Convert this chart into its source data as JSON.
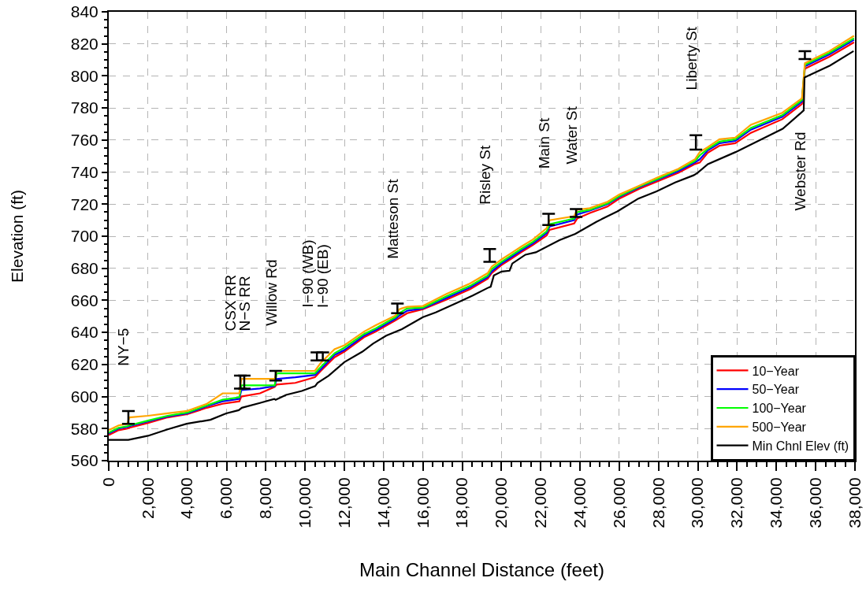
{
  "chart_data": {
    "type": "line",
    "xlabel": "Main Channel Distance (feet)",
    "ylabel": "Elevation (ft)",
    "xlim": [
      0,
      38000
    ],
    "ylim": [
      560,
      840
    ],
    "xticks": [
      0,
      {
        "value": 500,
        "label": null
      },
      {
        "value": 1000,
        "label": null
      },
      {
        "value": 1500,
        "label": null
      },
      {
        "value": 2000,
        "label": "2,000"
      },
      {
        "value": 2500,
        "label": null
      },
      {
        "value": 3000,
        "label": null
      },
      {
        "value": 3500,
        "label": null
      },
      {
        "value": 4000,
        "label": "4,000"
      },
      {
        "value": 4500,
        "label": null
      },
      {
        "value": 5000,
        "label": null
      },
      {
        "value": 5500,
        "label": null
      },
      {
        "value": 6000,
        "label": "6,000"
      },
      {
        "value": 6500,
        "label": null
      },
      {
        "value": 7000,
        "label": null
      },
      {
        "value": 7500,
        "label": null
      },
      {
        "value": 8000,
        "label": "8,000"
      },
      {
        "value": 8500,
        "label": null
      },
      {
        "value": 9000,
        "label": null
      },
      {
        "value": 9500,
        "label": null
      },
      {
        "value": 10000,
        "label": "10,000"
      },
      {
        "value": 10500,
        "label": null
      },
      {
        "value": 11000,
        "label": null
      },
      {
        "value": 11500,
        "label": null
      },
      {
        "value": 12000,
        "label": "12,000"
      },
      {
        "value": 12500,
        "label": null
      },
      {
        "value": 13000,
        "label": null
      },
      {
        "value": 13500,
        "label": null
      },
      {
        "value": 14000,
        "label": "14,000"
      },
      {
        "value": 14500,
        "label": null
      },
      {
        "value": 15000,
        "label": null
      },
      {
        "value": 15500,
        "label": null
      },
      {
        "value": 16000,
        "label": "16,000"
      },
      {
        "value": 16500,
        "label": null
      },
      {
        "value": 17000,
        "label": null
      },
      {
        "value": 17500,
        "label": null
      },
      {
        "value": 18000,
        "label": "18,000"
      },
      {
        "value": 18500,
        "label": null
      },
      {
        "value": 19000,
        "label": null
      },
      {
        "value": 19500,
        "label": null
      },
      {
        "value": 20000,
        "label": "20,000"
      },
      {
        "value": 20500,
        "label": null
      },
      {
        "value": 21000,
        "label": null
      },
      {
        "value": 21500,
        "label": null
      },
      {
        "value": 22000,
        "label": "22,000"
      },
      {
        "value": 22500,
        "label": null
      },
      {
        "value": 23000,
        "label": null
      },
      {
        "value": 23500,
        "label": null
      },
      {
        "value": 24000,
        "label": "24,000"
      },
      {
        "value": 24500,
        "label": null
      },
      {
        "value": 25000,
        "label": null
      },
      {
        "value": 25500,
        "label": null
      },
      {
        "value": 26000,
        "label": "26,000"
      },
      {
        "value": 26500,
        "label": null
      },
      {
        "value": 27000,
        "label": null
      },
      {
        "value": 27500,
        "label": null
      },
      {
        "value": 28000,
        "label": "28,000"
      },
      {
        "value": 28500,
        "label": null
      },
      {
        "value": 29000,
        "label": null
      },
      {
        "value": 29500,
        "label": null
      },
      {
        "value": 30000,
        "label": "30,000"
      },
      {
        "value": 30500,
        "label": null
      },
      {
        "value": 31000,
        "label": null
      },
      {
        "value": 31500,
        "label": null
      },
      {
        "value": 32000,
        "label": "32,000"
      },
      {
        "value": 32500,
        "label": null
      },
      {
        "value": 33000,
        "label": null
      },
      {
        "value": 33500,
        "label": null
      },
      {
        "value": 34000,
        "label": "34,000"
      },
      {
        "value": 34500,
        "label": null
      },
      {
        "value": 35000,
        "label": null
      },
      {
        "value": 35500,
        "label": null
      },
      {
        "value": 36000,
        "label": "36,000"
      },
      {
        "value": 36500,
        "label": null
      },
      {
        "value": 37000,
        "label": null
      },
      {
        "value": 37500,
        "label": null
      },
      {
        "value": 38000,
        "label": "38,000"
      }
    ],
    "yticks": [
      560,
      {
        "value": 565,
        "label": null
      },
      {
        "value": 570,
        "label": null
      },
      {
        "value": 575,
        "label": null
      },
      580,
      {
        "value": 585,
        "label": null
      },
      {
        "value": 590,
        "label": null
      },
      {
        "value": 595,
        "label": null
      },
      600,
      {
        "value": 605,
        "label": null
      },
      {
        "value": 610,
        "label": null
      },
      {
        "value": 615,
        "label": null
      },
      620,
      {
        "value": 625,
        "label": null
      },
      {
        "value": 630,
        "label": null
      },
      {
        "value": 635,
        "label": null
      },
      640,
      {
        "value": 645,
        "label": null
      },
      {
        "value": 650,
        "label": null
      },
      {
        "value": 655,
        "label": null
      },
      660,
      {
        "value": 665,
        "label": null
      },
      {
        "value": 670,
        "label": null
      },
      {
        "value": 675,
        "label": null
      },
      680,
      {
        "value": 685,
        "label": null
      },
      {
        "value": 690,
        "label": null
      },
      {
        "value": 695,
        "label": null
      },
      700,
      {
        "value": 705,
        "label": null
      },
      {
        "value": 710,
        "label": null
      },
      {
        "value": 715,
        "label": null
      },
      720,
      {
        "value": 725,
        "label": null
      },
      {
        "value": 730,
        "label": null
      },
      {
        "value": 735,
        "label": null
      },
      740,
      {
        "value": 745,
        "label": null
      },
      {
        "value": 750,
        "label": null
      },
      {
        "value": 755,
        "label": null
      },
      760,
      {
        "value": 765,
        "label": null
      },
      {
        "value": 770,
        "label": null
      },
      {
        "value": 775,
        "label": null
      },
      780,
      {
        "value": 785,
        "label": null
      },
      {
        "value": 790,
        "label": null
      },
      {
        "value": 795,
        "label": null
      },
      800,
      {
        "value": 805,
        "label": null
      },
      {
        "value": 810,
        "label": null
      },
      {
        "value": 815,
        "label": null
      },
      820,
      {
        "value": 825,
        "label": null
      },
      {
        "value": 830,
        "label": null
      },
      {
        "value": 835,
        "label": null
      },
      840
    ],
    "grid": true,
    "legend": "bottom right",
    "line_style": "solid",
    "x": [
      0,
      500,
      950,
      1050,
      2000,
      3000,
      4000,
      5000,
      5800,
      6650,
      6750,
      7700,
      8450,
      8550,
      9500,
      10500,
      10800,
      11500,
      12000,
      13000,
      13600,
      14600,
      14800,
      15200,
      16000,
      17200,
      18400,
      19300,
      19500,
      20000,
      20500,
      21000,
      21600,
      22300,
      22450,
      23700,
      23850,
      24500,
      25400,
      26000,
      27000,
      28000,
      29000,
      29850,
      30100,
      30500,
      31100,
      31900,
      32700,
      34300,
      35300,
      35450,
      36700,
      37950
    ],
    "series": [
      {
        "name": "10−Year",
        "color": "#ff0000",
        "values": [
          576,
          579,
          580,
          580.5,
          583.5,
          587,
          589,
          593,
          595.5,
          597,
          600,
          602,
          606,
          607.5,
          608.5,
          612,
          616,
          624.5,
          628,
          637,
          640.5,
          647.5,
          649,
          652,
          654.5,
          660.5,
          667,
          673.5,
          677,
          682,
          686,
          690,
          694.5,
          700.5,
          704,
          708,
          711,
          714.5,
          718.5,
          723.5,
          729.5,
          734.5,
          739.5,
          745,
          746,
          752,
          756.5,
          758,
          764.5,
          773,
          782.5,
          804.5,
          812,
          821
        ]
      },
      {
        "name": "50−Year",
        "color": "#0000ff",
        "values": [
          577,
          580,
          581,
          581.5,
          584.5,
          587.5,
          589.5,
          594,
          597,
          598.5,
          604,
          605,
          606.5,
          611,
          612,
          613.5,
          617,
          626,
          629,
          638,
          641.5,
          648.5,
          650.5,
          653.5,
          655,
          661.5,
          668,
          674.5,
          678,
          683,
          687,
          691,
          695.5,
          702,
          706,
          710,
          713.5,
          716,
          720,
          724.5,
          730.5,
          735.5,
          740.5,
          746,
          748,
          753.5,
          758,
          759.5,
          766.5,
          774.5,
          784,
          806,
          813.5,
          822.5
        ]
      },
      {
        "name": "100−Year",
        "color": "#00ff00",
        "values": [
          577.5,
          580.5,
          581.5,
          582,
          585,
          588,
          590,
          594.5,
          598,
          599.5,
          607,
          607,
          607,
          614.5,
          614.5,
          614.5,
          618.5,
          627,
          630.5,
          639,
          642.5,
          649.5,
          652,
          655,
          655.5,
          662.5,
          669,
          675.5,
          679.5,
          684,
          688,
          692,
          696.5,
          703,
          707.5,
          711,
          715,
          716.5,
          720.5,
          725,
          731,
          736,
          741.5,
          747,
          750.5,
          754.5,
          759,
          760.5,
          767.5,
          775.5,
          785,
          807,
          814.5,
          823.5
        ]
      },
      {
        "name": "500−Year",
        "color": "#ffa500",
        "values": [
          579,
          582,
          583,
          587,
          588,
          589.5,
          591,
          595.5,
          602,
          602,
          611,
          611,
          611,
          616,
          616,
          616,
          621,
          629.5,
          632,
          640.5,
          644.5,
          650.5,
          654.5,
          656,
          656.5,
          664,
          670.5,
          677,
          681,
          685.5,
          689.5,
          693.5,
          698,
          705,
          710,
          712.5,
          716.5,
          717.5,
          721.5,
          726,
          731.5,
          737,
          742,
          748,
          752.5,
          755.5,
          760.5,
          761.5,
          769.5,
          777,
          786,
          808,
          815.5,
          825
        ]
      },
      {
        "name": "Min Chnl Elev (ft)",
        "color": "#000000",
        "x": [
          0,
          1000,
          2000,
          3000,
          3970,
          5180,
          5980,
          6620,
          6780,
          7700,
          8430,
          8500,
          9030,
          9830,
          10510,
          10630,
          11200,
          12000,
          12920,
          13460,
          14130,
          14930,
          16000,
          16650,
          17740,
          18540,
          19340,
          19450,
          19610,
          20010,
          20410,
          20550,
          21220,
          21750,
          22950,
          23760,
          24830,
          25900,
          26970,
          27900,
          28840,
          29780,
          29980,
          30510,
          31920,
          32990,
          34320,
          35390,
          35430,
          35590,
          36730,
          37930
        ],
        "values": [
          573,
          573,
          575.5,
          579.5,
          583,
          585.5,
          589.5,
          591.5,
          593,
          596,
          598.5,
          598,
          601,
          603.5,
          606.5,
          608.5,
          613,
          621.5,
          628,
          633,
          638,
          642,
          649.5,
          652.5,
          658.5,
          663,
          668,
          668.5,
          675.5,
          678,
          678.5,
          683,
          688.5,
          690,
          697.5,
          701.5,
          709,
          715.5,
          723.5,
          728,
          733.5,
          738,
          739.5,
          745,
          752.5,
          759,
          767,
          778.5,
          799,
          800,
          806.5,
          815.5
        ]
      },
      {
        "type": "scatter",
        "color": "#000000",
        "x": [
          1000,
          6700,
          6900,
          8500,
          10600,
          10900,
          14700,
          19400,
          22400,
          23800,
          29900,
          35450
        ],
        "values": [
          587,
          609,
          609,
          613,
          625,
          625,
          655,
          688,
          710.5,
          714.5,
          758.5,
          813
        ],
        "errors": [
          4,
          4,
          4,
          3,
          2.5,
          2.5,
          3,
          4,
          3.5,
          2.5,
          4.5,
          2.5
        ]
      }
    ],
    "annotations": [
      "NY−5",
      "CSX RR",
      "N−S RR",
      "Willow Rd",
      "I−90 (WB)",
      "I−90 (EB)",
      "Matteson St",
      "Risley St",
      "Main St",
      "Water St",
      "Liberty St",
      "Webster Rd"
    ]
  }
}
